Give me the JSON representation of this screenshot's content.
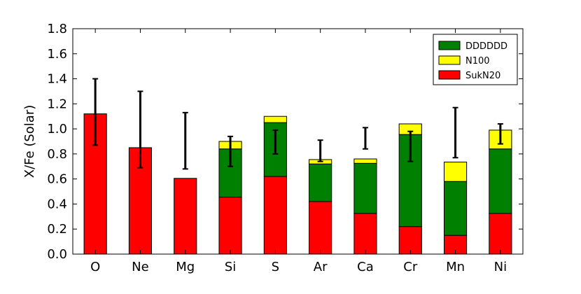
{
  "chart_data": {
    "type": "bar",
    "stacked": true,
    "title": "",
    "xlabel": "",
    "ylabel": "X/Fe (Solar)",
    "ylim": [
      0.0,
      1.8
    ],
    "yticks": [
      "0.0",
      "0.2",
      "0.4",
      "0.6",
      "0.8",
      "1.0",
      "1.2",
      "1.4",
      "1.6",
      "1.8"
    ],
    "grid": false,
    "legend_position": "top-right",
    "categories": [
      "O",
      "Ne",
      "Mg",
      "Si",
      "S",
      "Ar",
      "Ca",
      "Cr",
      "Mn",
      "Ni"
    ],
    "series": [
      {
        "name": "SukN20",
        "color": "#ff0000",
        "values": [
          1.12,
          0.85,
          0.605,
          0.455,
          0.62,
          0.42,
          0.325,
          0.22,
          0.15,
          0.325
        ]
      },
      {
        "name": "DDDDDD",
        "color": "#008000",
        "values": [
          0.0,
          0.0,
          0.0,
          0.385,
          0.43,
          0.3,
          0.4,
          0.735,
          0.43,
          0.515
        ]
      },
      {
        "name": "N100",
        "color": "#ffff00",
        "values": [
          0.0,
          0.0,
          0.0,
          0.06,
          0.05,
          0.035,
          0.035,
          0.085,
          0.155,
          0.15
        ]
      }
    ],
    "legend_order": [
      "DDDDDD",
      "N100",
      "SukN20"
    ],
    "error_bars": [
      {
        "category": "O",
        "low": 0.87,
        "high": 1.4
      },
      {
        "category": "Ne",
        "low": 0.69,
        "high": 1.3
      },
      {
        "category": "Mg",
        "low": 0.68,
        "high": 1.13
      },
      {
        "category": "Si",
        "low": 0.7,
        "high": 0.94
      },
      {
        "category": "S",
        "low": 0.8,
        "high": 0.99
      },
      {
        "category": "Ar",
        "low": 0.74,
        "high": 0.91
      },
      {
        "category": "Ca",
        "low": 0.84,
        "high": 1.01
      },
      {
        "category": "Cr",
        "low": 0.74,
        "high": 0.98
      },
      {
        "category": "Mn",
        "low": 0.77,
        "high": 1.17
      },
      {
        "category": "Ni",
        "low": 0.88,
        "high": 1.04
      }
    ]
  }
}
